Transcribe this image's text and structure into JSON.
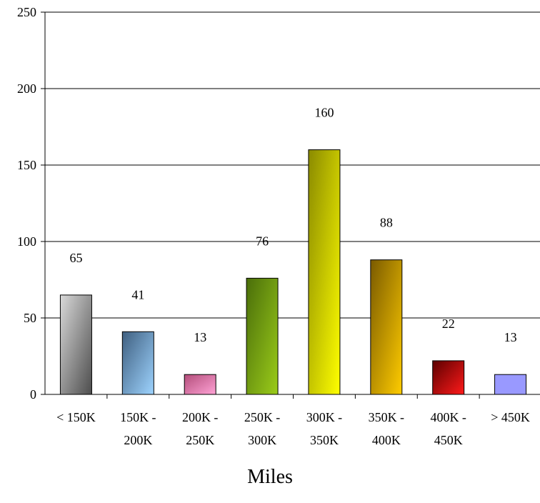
{
  "chart_data": {
    "type": "bar",
    "categories": [
      [
        "< 150K"
      ],
      [
        "150K -",
        "200K"
      ],
      [
        "200K -",
        "250K"
      ],
      [
        "250K -",
        "300K"
      ],
      [
        "300K -",
        "350K"
      ],
      [
        "350K -",
        "400K"
      ],
      [
        "400K -",
        "450K"
      ],
      [
        "> 450K"
      ]
    ],
    "values": [
      65,
      41,
      13,
      76,
      160,
      88,
      22,
      13
    ],
    "data_labels": [
      "65",
      "41",
      "13",
      "76",
      "160",
      "88",
      "22",
      "13"
    ],
    "bar_gradients": [
      [
        "#d9d9d9",
        "#4d4d4d"
      ],
      [
        "#3f5f80",
        "#9ed4ff"
      ],
      [
        "#b34d7a",
        "#ffa3d6"
      ],
      [
        "#4a6e0a",
        "#9bcc1a"
      ],
      [
        "#8a8a00",
        "#ffff00"
      ],
      [
        "#7a5a00",
        "#ffcc00"
      ],
      [
        "#5c0000",
        "#ff1a1a"
      ],
      [
        "#9999ff",
        "#9999ff"
      ]
    ],
    "title": "",
    "xlabel": "Miles",
    "ylabel": "",
    "ylim": [
      0,
      250
    ],
    "yticks": [
      "0",
      "50",
      "100",
      "150",
      "200",
      "250"
    ],
    "grid": true,
    "legend": "none"
  }
}
